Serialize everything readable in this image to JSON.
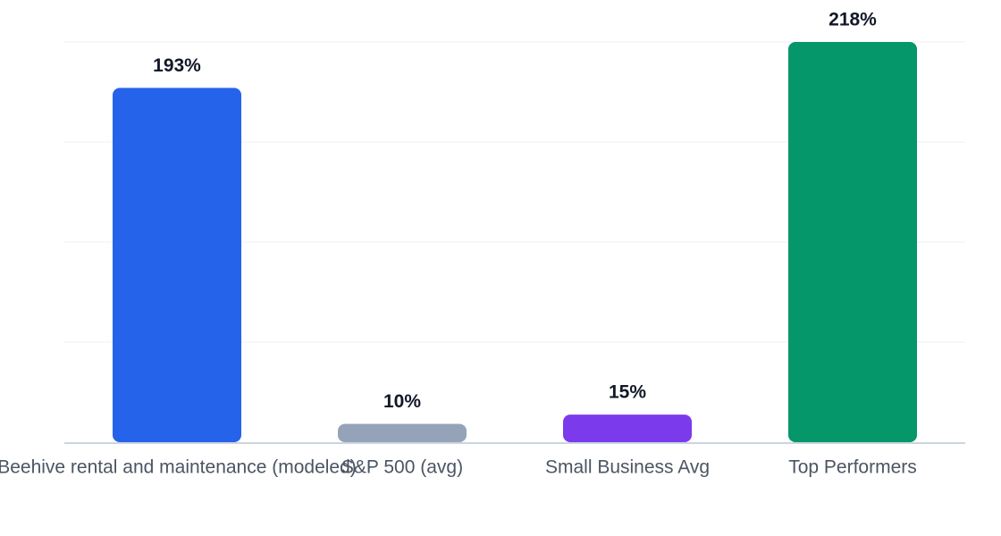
{
  "chart_data": {
    "type": "bar",
    "categories": [
      "Beehive rental and maintenance (modeled)",
      "S&P 500 (avg)",
      "Small Business Avg",
      "Top Performers"
    ],
    "values": [
      193,
      10,
      15,
      218
    ],
    "value_labels": [
      "193%",
      "10%",
      "15%",
      "218%"
    ],
    "colors": [
      "#2563eb",
      "#94a3b8",
      "#7c3aed",
      "#059669"
    ],
    "ylim": [
      0,
      218
    ],
    "grid": true
  }
}
